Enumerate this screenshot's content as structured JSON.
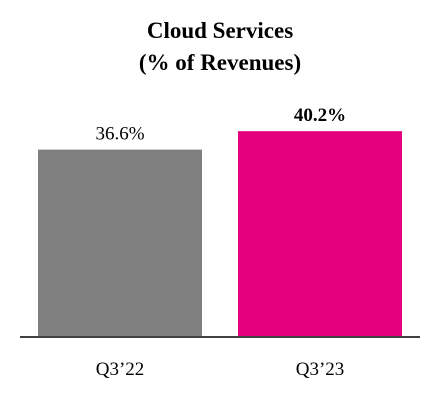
{
  "chart_data": {
    "type": "bar",
    "title_lines": [
      "Cloud Services",
      "(% of Revenues)"
    ],
    "categories": [
      "Q3’22",
      "Q3’23"
    ],
    "values": [
      36.6,
      40.2
    ],
    "data_labels": [
      "36.6%",
      "40.2%"
    ],
    "bold_labels": [
      false,
      true
    ],
    "colors": [
      "#808080",
      "#e5007d"
    ],
    "axis_color": "#404040",
    "ylim": [
      0,
      50
    ],
    "grid": false,
    "legend": "none",
    "xlabel": "",
    "ylabel": ""
  }
}
